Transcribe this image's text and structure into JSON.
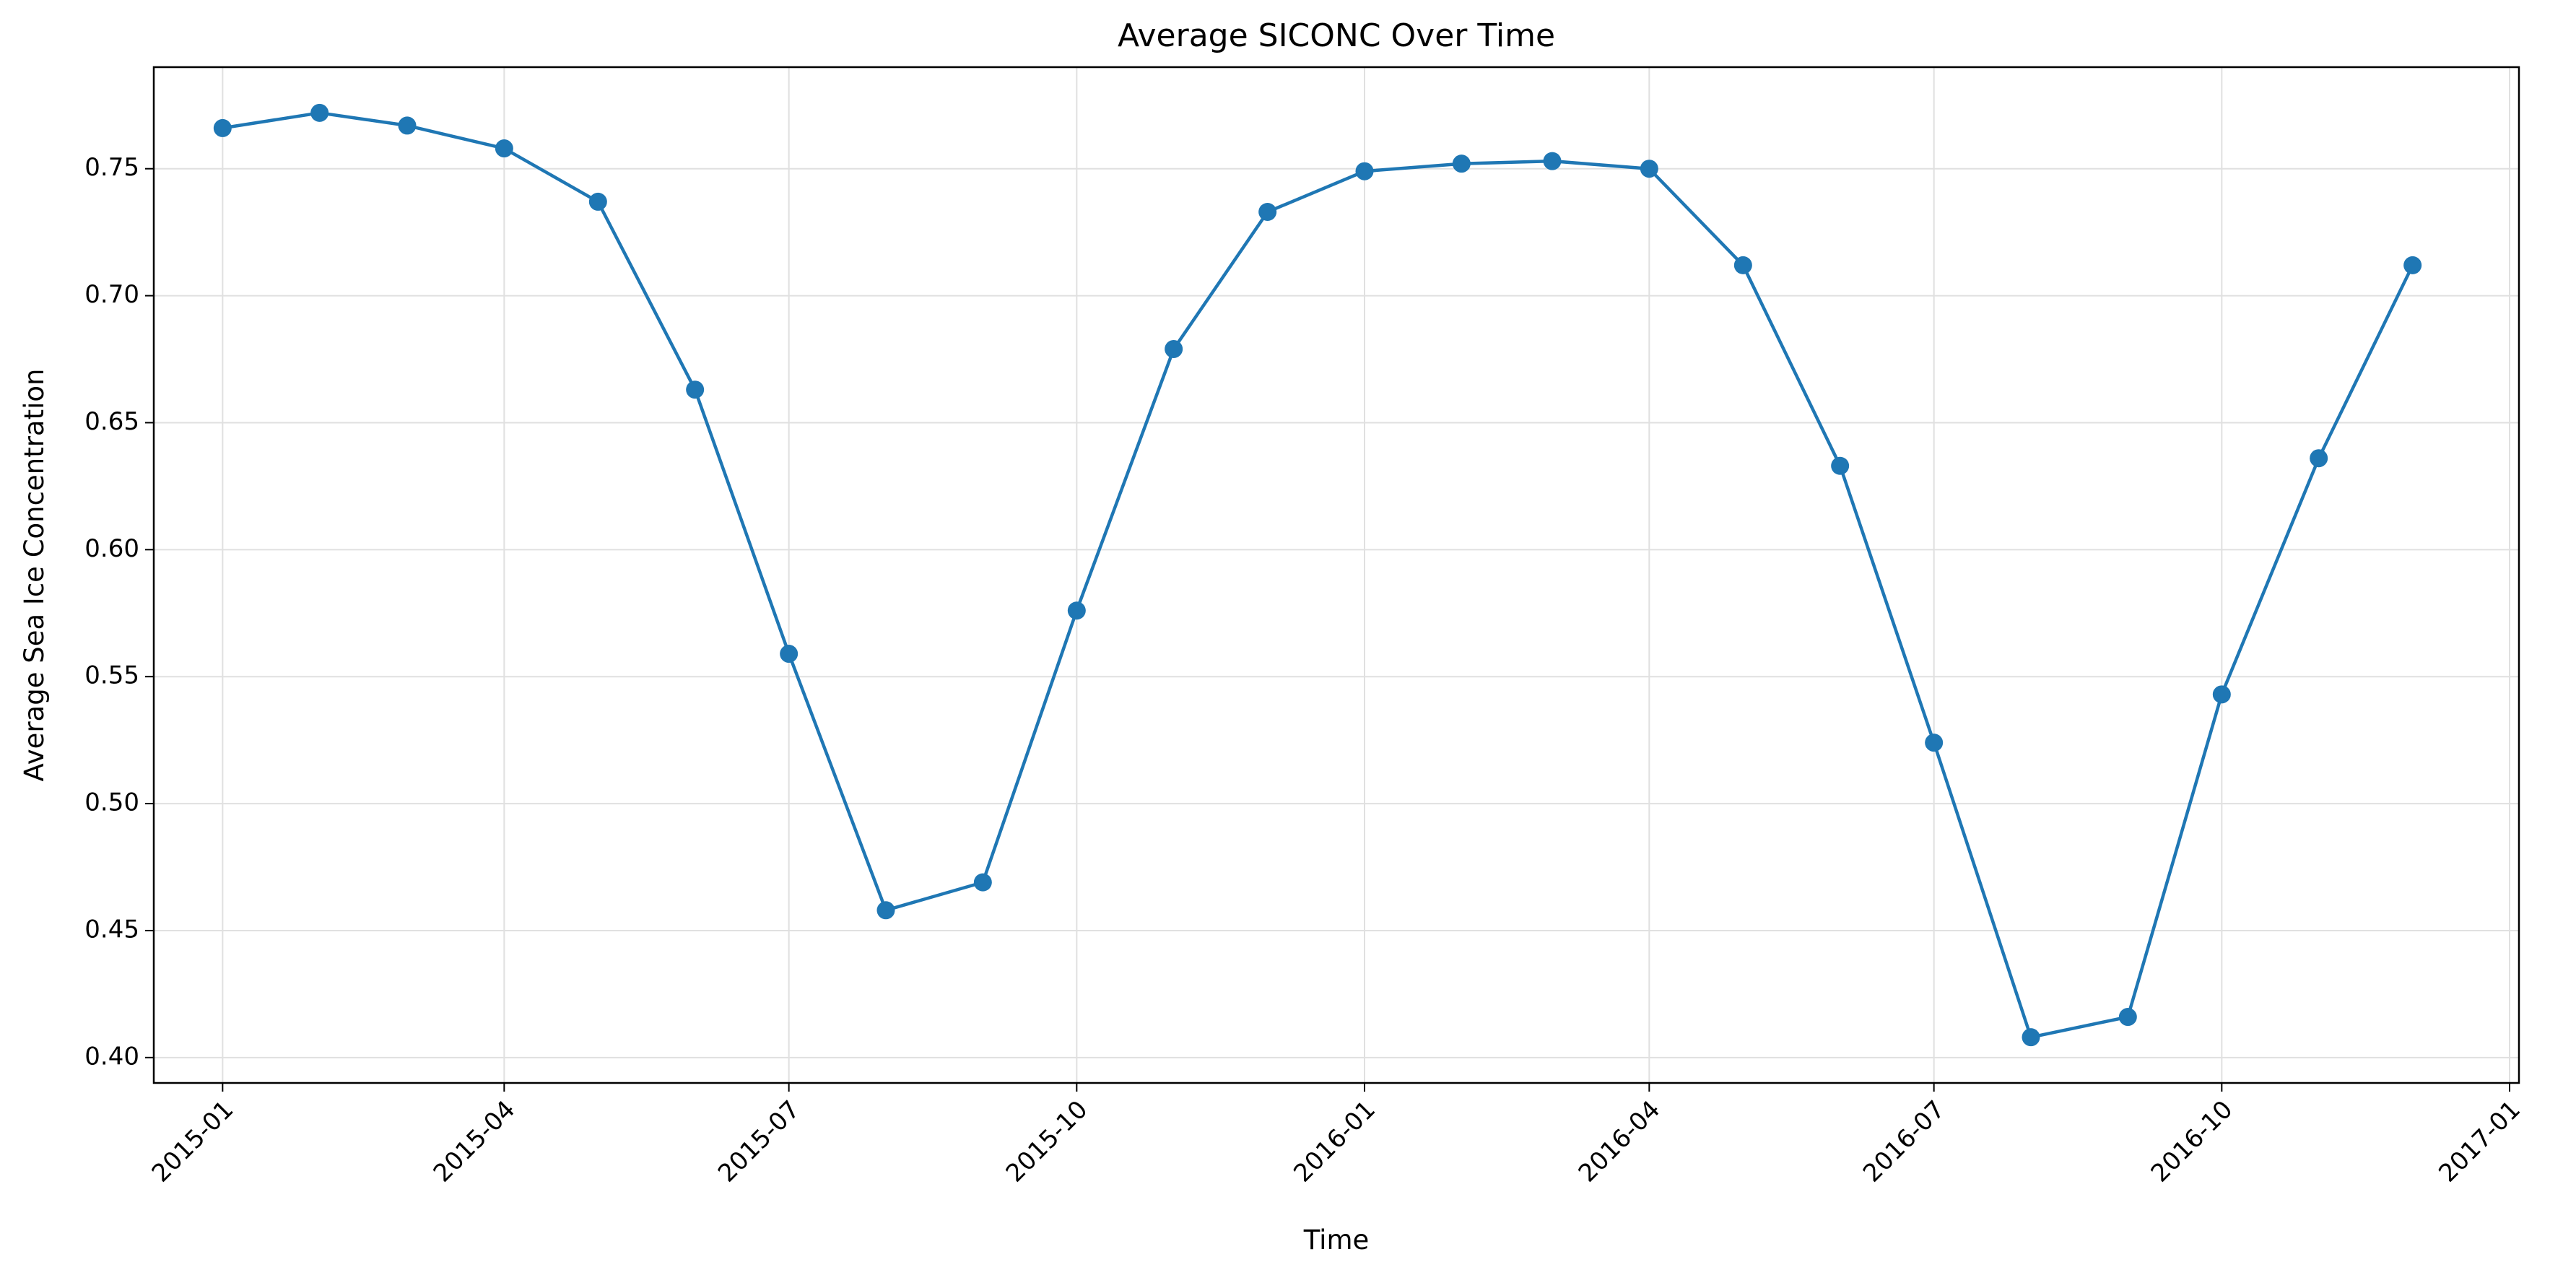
{
  "chart_data": {
    "type": "line",
    "title": "Average SICONC Over Time",
    "xlabel": "Time",
    "ylabel": "Average Sea Ice Concentration",
    "x_axis_type": "date",
    "xlim": [
      "2014-12-10",
      "2017-01-04"
    ],
    "ylim": [
      0.39,
      0.79
    ],
    "x_ticks": [
      "2015-01",
      "2015-04",
      "2015-07",
      "2015-10",
      "2016-01",
      "2016-04",
      "2016-07",
      "2016-10",
      "2017-01"
    ],
    "y_ticks": [
      0.4,
      0.45,
      0.5,
      0.55,
      0.6,
      0.65,
      0.7,
      0.75
    ],
    "y_tick_labels": [
      "0.40",
      "0.45",
      "0.50",
      "0.55",
      "0.60",
      "0.65",
      "0.70",
      "0.75"
    ],
    "grid": true,
    "legend": "none",
    "series": [
      {
        "color": "#1f77b4",
        "marker": "circle",
        "x": [
          "2015-01-01",
          "2015-02-01",
          "2015-03-01",
          "2015-04-01",
          "2015-05-01",
          "2015-06-01",
          "2015-07-01",
          "2015-08-01",
          "2015-09-01",
          "2015-10-01",
          "2015-11-01",
          "2015-12-01",
          "2016-01-01",
          "2016-02-01",
          "2016-03-01",
          "2016-04-01",
          "2016-05-01",
          "2016-06-01",
          "2016-07-01",
          "2016-08-01",
          "2016-09-01",
          "2016-10-01",
          "2016-11-01",
          "2016-12-01"
        ],
        "values": [
          0.766,
          0.772,
          0.767,
          0.758,
          0.737,
          0.663,
          0.559,
          0.458,
          0.469,
          0.576,
          0.679,
          0.733,
          0.749,
          0.752,
          0.753,
          0.75,
          0.712,
          0.633,
          0.524,
          0.408,
          0.416,
          0.543,
          0.636,
          0.712
        ]
      }
    ]
  }
}
